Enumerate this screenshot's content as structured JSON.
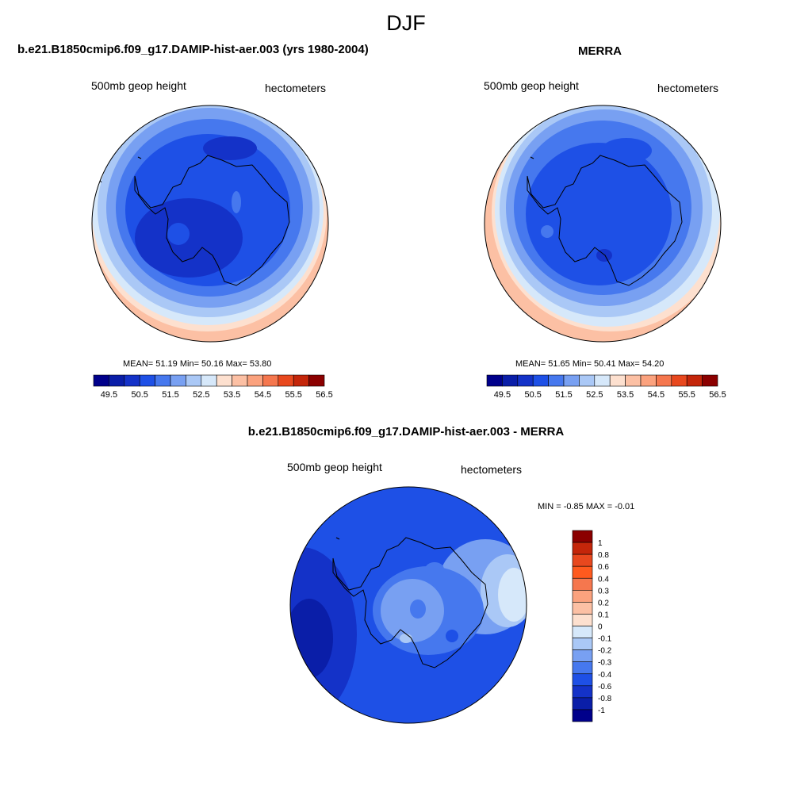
{
  "page": {
    "title": "DJF"
  },
  "panels": [
    {
      "id": "model",
      "title": "b.e21.B1850cmip6.f09_g17.DAMIP-hist-aer.003 (yrs 1980-2004)",
      "left_label": "500mb geop height",
      "right_label": "hectometers",
      "stats": "MEAN=  51.19  Min=  50.16  Max=  53.80"
    },
    {
      "id": "obs",
      "title": "MERRA",
      "left_label": "500mb geop height",
      "right_label": "hectometers",
      "stats": "MEAN=  51.65  Min=  50.41  Max=  54.20"
    },
    {
      "id": "diff",
      "title": "b.e21.B1850cmip6.f09_g17.DAMIP-hist-aer.003 - MERRA",
      "left_label": "500mb geop height",
      "right_label": "hectometers",
      "stats": "MIN =  -0.85 MAX =  -0.01"
    }
  ],
  "colorbar_horizontal": {
    "colors": [
      "#00008b",
      "#0a1ea8",
      "#1432c8",
      "#1e50e6",
      "#4678ee",
      "#78a0f2",
      "#aac8f6",
      "#d6e8fa",
      "#fde0cf",
      "#fcc0a4",
      "#fba27e",
      "#f5774e",
      "#e8481e",
      "#c4260a",
      "#8b0000"
    ],
    "tick_labels": [
      "49.5",
      "50.5",
      "51.5",
      "52.5",
      "53.5",
      "54.5",
      "55.5",
      "56.5"
    ]
  },
  "colorbar_vertical": {
    "colors": [
      "#8b0000",
      "#c4260a",
      "#e8481e",
      "#ff5a1e",
      "#f5774e",
      "#fba27e",
      "#fcc0a4",
      "#fde0cf",
      "#d6e8fa",
      "#aac8f6",
      "#78a0f2",
      "#4678ee",
      "#1e50e6",
      "#1432c8",
      "#0a1ea8",
      "#00008b"
    ],
    "tick_labels": [
      "1",
      "0.8",
      "0.6",
      "0.4",
      "0.3",
      "0.2",
      "0.1",
      "0",
      "-0.1",
      "-0.2",
      "-0.3",
      "-0.4",
      "-0.6",
      "-0.8",
      "-1"
    ]
  }
}
